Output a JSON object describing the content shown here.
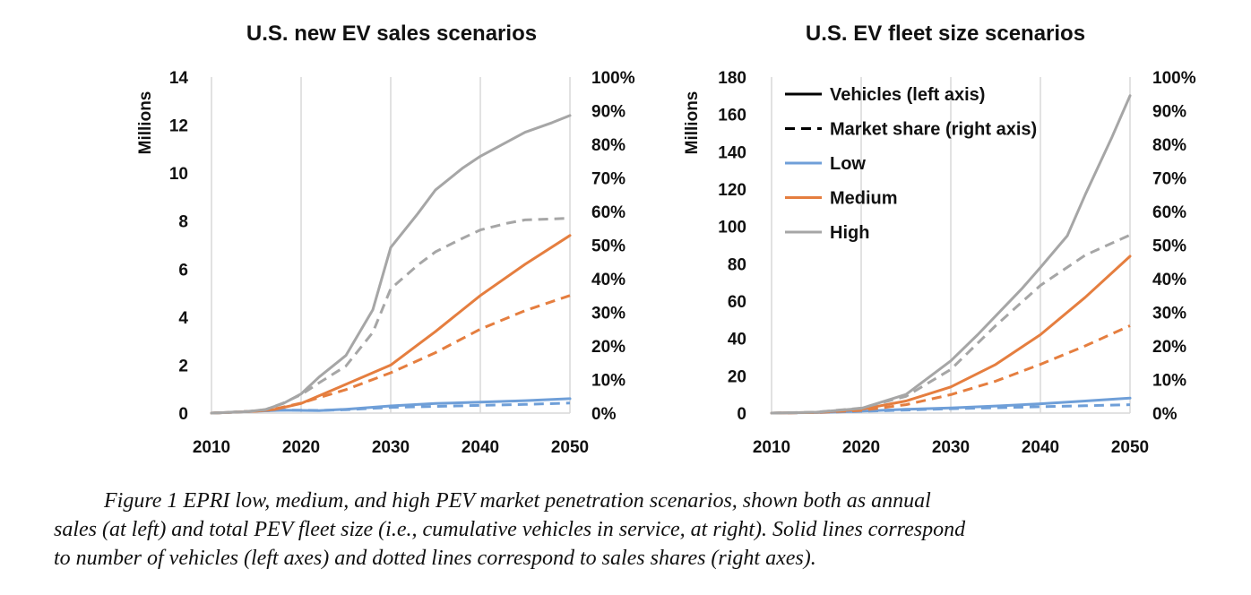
{
  "caption": {
    "line1": "Figure 1  EPRI low, medium, and high PEV market penetration scenarios, shown both as annual",
    "line2": "sales (at left) and total PEV fleet size (i.e., cumulative vehicles in service, at right). Solid lines correspond",
    "line3": "to number of vehicles (left axes) and dotted lines correspond to sales shares (right axes)."
  },
  "colors": {
    "low": "#6f9fd8",
    "medium": "#e57e3f",
    "high": "#a6a6a6",
    "legend_neutral": "#000000",
    "grid": "#d9d9d9"
  },
  "legend": {
    "items": [
      {
        "key": "vehicles",
        "label": "Vehicles (left axis)",
        "style": "solid",
        "color": "#000000"
      },
      {
        "key": "share",
        "label": "Market share (right axis)",
        "style": "dashed",
        "color": "#000000"
      },
      {
        "key": "low",
        "label": "Low",
        "style": "solid",
        "color": "#6f9fd8"
      },
      {
        "key": "medium",
        "label": "Medium",
        "style": "solid",
        "color": "#e57e3f"
      },
      {
        "key": "high",
        "label": "High",
        "style": "solid",
        "color": "#a6a6a6"
      }
    ]
  },
  "chart_data": [
    {
      "type": "line",
      "title": "U.S. new EV sales scenarios",
      "ylabel": "Millions",
      "xlim": [
        2010,
        2050
      ],
      "ylim": [
        0,
        14
      ],
      "y2lim": [
        0,
        100
      ],
      "x_ticks": [
        2010,
        2020,
        2030,
        2040,
        2050
      ],
      "y_ticks": [
        0,
        2,
        4,
        6,
        8,
        10,
        12,
        14
      ],
      "y2_ticks": [
        "0%",
        "10%",
        "20%",
        "30%",
        "40%",
        "50%",
        "60%",
        "70%",
        "80%",
        "90%",
        "100%"
      ],
      "y2_values": [
        0,
        10,
        20,
        30,
        40,
        50,
        60,
        70,
        80,
        90,
        100
      ],
      "grid": "vertical",
      "series": [
        {
          "scenario": "low",
          "kind": "vehicles",
          "axis": "left",
          "x": [
            2010,
            2015,
            2018,
            2022,
            2025,
            2030,
            2035,
            2040,
            2045,
            2050
          ],
          "y": [
            0.0,
            0.08,
            0.12,
            0.1,
            0.16,
            0.3,
            0.4,
            0.46,
            0.52,
            0.6
          ]
        },
        {
          "scenario": "low",
          "kind": "share",
          "axis": "right",
          "x": [
            2010,
            2015,
            2018,
            2022,
            2025,
            2030,
            2035,
            2040,
            2045,
            2050
          ],
          "y": [
            0.0,
            0.6,
            0.9,
            0.8,
            1.0,
            1.7,
            2.0,
            2.3,
            2.6,
            3.0
          ]
        },
        {
          "scenario": "medium",
          "kind": "vehicles",
          "axis": "left",
          "x": [
            2010,
            2015,
            2017,
            2020,
            2025,
            2030,
            2035,
            2040,
            2045,
            2050
          ],
          "y": [
            0.0,
            0.08,
            0.15,
            0.4,
            1.2,
            2.0,
            3.4,
            4.9,
            6.2,
            7.4
          ]
        },
        {
          "scenario": "medium",
          "kind": "share",
          "axis": "right",
          "x": [
            2010,
            2015,
            2017,
            2020,
            2025,
            2030,
            2035,
            2040,
            2045,
            2050
          ],
          "y": [
            0.0,
            0.6,
            1.2,
            3.0,
            7.0,
            12.0,
            18.0,
            25.0,
            30.5,
            35.0
          ]
        },
        {
          "scenario": "high",
          "kind": "vehicles",
          "axis": "left",
          "x": [
            2010,
            2014,
            2016,
            2018,
            2020,
            2022,
            2025,
            2028,
            2030,
            2033,
            2035,
            2038,
            2040,
            2042,
            2045,
            2048,
            2050
          ],
          "y": [
            0.0,
            0.06,
            0.15,
            0.4,
            0.8,
            1.5,
            2.4,
            4.3,
            6.9,
            8.3,
            9.3,
            10.2,
            10.7,
            11.1,
            11.7,
            12.1,
            12.4
          ]
        },
        {
          "scenario": "high",
          "kind": "share",
          "axis": "right",
          "x": [
            2010,
            2014,
            2016,
            2018,
            2020,
            2022,
            2025,
            2028,
            2030,
            2033,
            2035,
            2038,
            2040,
            2043,
            2045,
            2048,
            2050
          ],
          "y": [
            0.0,
            0.5,
            1.0,
            3.0,
            5.5,
            9.0,
            14.0,
            24.0,
            37.0,
            44.0,
            48.0,
            52.0,
            54.5,
            56.5,
            57.5,
            57.8,
            58.0
          ]
        }
      ]
    },
    {
      "type": "line",
      "title": "U.S. EV fleet size scenarios",
      "ylabel": "Millions",
      "xlim": [
        2010,
        2050
      ],
      "ylim": [
        0,
        180
      ],
      "y2lim": [
        0,
        100
      ],
      "x_ticks": [
        2010,
        2020,
        2030,
        2040,
        2050
      ],
      "y_ticks": [
        0,
        20,
        40,
        60,
        80,
        100,
        120,
        140,
        160,
        180
      ],
      "y2_ticks": [
        "0%",
        "10%",
        "20%",
        "30%",
        "40%",
        "50%",
        "60%",
        "70%",
        "80%",
        "90%",
        "100%"
      ],
      "y2_values": [
        0,
        10,
        20,
        30,
        40,
        50,
        60,
        70,
        80,
        90,
        100
      ],
      "grid": "vertical",
      "legend_position": "top-left",
      "series": [
        {
          "scenario": "low",
          "kind": "vehicles",
          "axis": "left",
          "x": [
            2010,
            2015,
            2020,
            2025,
            2030,
            2035,
            2040,
            2045,
            2050
          ],
          "y": [
            0,
            0.3,
            1.0,
            2.0,
            2.8,
            3.8,
            5.0,
            6.5,
            8.0
          ]
        },
        {
          "scenario": "low",
          "kind": "share",
          "axis": "right",
          "x": [
            2010,
            2015,
            2020,
            2025,
            2030,
            2035,
            2040,
            2045,
            2050
          ],
          "y": [
            0,
            0.2,
            0.5,
            0.9,
            1.3,
            1.6,
            1.9,
            2.2,
            2.5
          ]
        },
        {
          "scenario": "medium",
          "kind": "vehicles",
          "axis": "left",
          "x": [
            2010,
            2015,
            2020,
            2025,
            2030,
            2035,
            2040,
            2045,
            2050
          ],
          "y": [
            0,
            0.4,
            2.0,
            6.5,
            14.0,
            26.0,
            42.0,
            62.0,
            84.0
          ]
        },
        {
          "scenario": "medium",
          "kind": "share",
          "axis": "right",
          "x": [
            2010,
            2015,
            2020,
            2025,
            2030,
            2035,
            2040,
            2045,
            2050
          ],
          "y": [
            0,
            0.2,
            0.8,
            2.5,
            5.5,
            9.5,
            14.5,
            20.0,
            26.0
          ]
        },
        {
          "scenario": "high",
          "kind": "vehicles",
          "axis": "left",
          "x": [
            2010,
            2015,
            2020,
            2025,
            2030,
            2033,
            2035,
            2038,
            2040,
            2043,
            2045,
            2048,
            2050
          ],
          "y": [
            0,
            0.5,
            2.5,
            10.0,
            28.0,
            42.0,
            52.0,
            67.0,
            78.0,
            95.0,
            117.0,
            148.0,
            170.0
          ]
        },
        {
          "scenario": "high",
          "kind": "share",
          "axis": "right",
          "x": [
            2010,
            2015,
            2020,
            2025,
            2030,
            2035,
            2040,
            2045,
            2050
          ],
          "y": [
            0,
            0.3,
            1.5,
            5.0,
            13.0,
            26.0,
            38.0,
            47.0,
            53.0
          ]
        }
      ]
    }
  ]
}
